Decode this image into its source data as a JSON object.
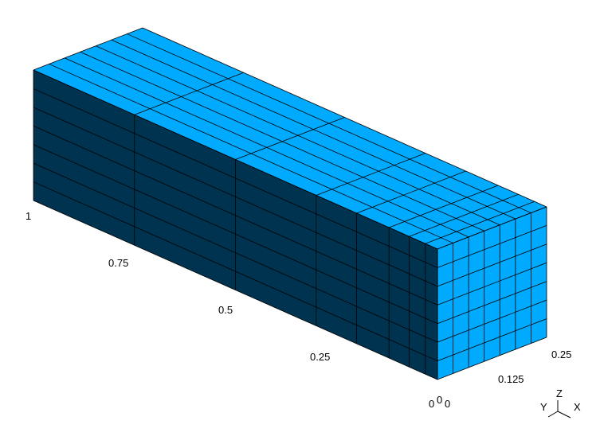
{
  "scene": {
    "description_type": "3d-hex-mesh-viewer",
    "colors": {
      "background": "#ffffff",
      "face_light": "#00aaff",
      "face_dark": "#003350",
      "edge": "#000000"
    },
    "mesh": {
      "length_divisions": [
        0.0,
        0.03,
        0.07,
        0.12,
        0.2,
        0.3,
        0.5,
        0.75,
        1.0
      ],
      "width_divisions": 7,
      "height_divisions": 7
    }
  },
  "axes": {
    "length_ticks": [
      "1",
      "0.75",
      "0.5",
      "0.25",
      "0"
    ],
    "width_ticks": [
      "0",
      "0.125",
      "0.25"
    ],
    "height_origin_label": "0",
    "triad": {
      "x": "X",
      "y": "Y",
      "z": "Z"
    }
  }
}
